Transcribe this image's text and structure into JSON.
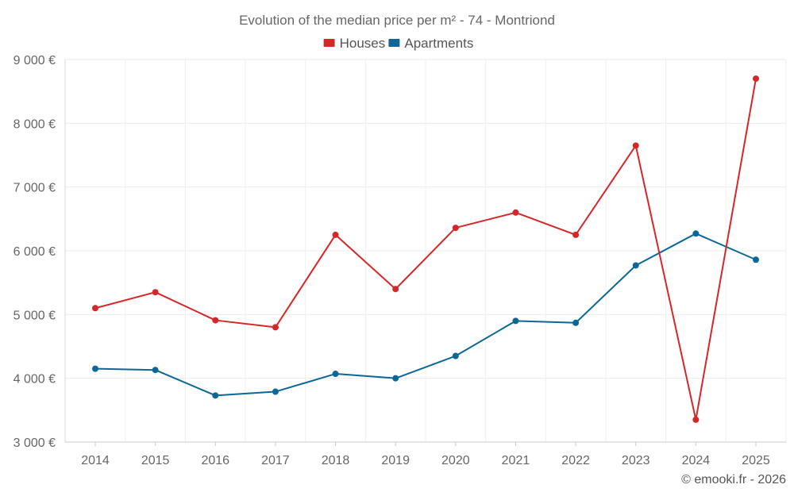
{
  "chart_data": {
    "type": "line",
    "title": "Evolution of the median price per m² - 74 - Montriond",
    "categories": [
      "2014",
      "2015",
      "2016",
      "2017",
      "2018",
      "2019",
      "2020",
      "2021",
      "2022",
      "2023",
      "2024",
      "2025"
    ],
    "series": [
      {
        "name": "Houses",
        "color": "#d62728",
        "values": [
          5100,
          5350,
          4910,
          4800,
          6250,
          5400,
          6360,
          6600,
          6250,
          7650,
          3350,
          8700
        ]
      },
      {
        "name": "Apartments",
        "color": "#0d6796",
        "values": [
          4150,
          4130,
          3730,
          3790,
          4070,
          4000,
          4350,
          4900,
          4870,
          5770,
          6270,
          5860
        ]
      }
    ],
    "ylim": [
      3000,
      9000
    ],
    "yticks": [
      {
        "value": 3000,
        "label": "3 000 €"
      },
      {
        "value": 4000,
        "label": "4 000 €"
      },
      {
        "value": 5000,
        "label": "5 000 €"
      },
      {
        "value": 6000,
        "label": "6 000 €"
      },
      {
        "value": 7000,
        "label": "7 000 €"
      },
      {
        "value": 8000,
        "label": "8 000 €"
      },
      {
        "value": 9000,
        "label": "9 000 €"
      }
    ],
    "legend_position": "top-center",
    "grid": true
  },
  "credit": "© emooki.fr - 2026"
}
